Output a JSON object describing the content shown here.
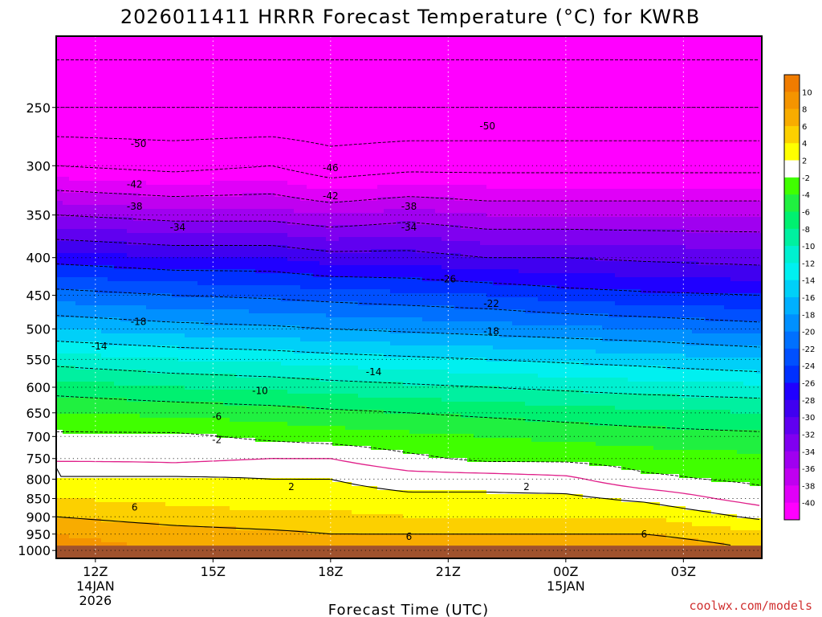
{
  "chart_data": {
    "type": "heatmap",
    "title": "2026011411 HRRR Forecast Temperature (°C) for KWRB",
    "xlabel": "Forecast Time (UTC)",
    "ylabel": "",
    "credit": "coolwx.com/models",
    "x_ticks": [
      {
        "hour": 12,
        "label": "12Z",
        "sub": [
          "14JAN",
          "2026"
        ]
      },
      {
        "hour": 15,
        "label": "15Z",
        "sub": []
      },
      {
        "hour": 18,
        "label": "18Z",
        "sub": []
      },
      {
        "hour": 21,
        "label": "21Z",
        "sub": []
      },
      {
        "hour": 24,
        "label": "00Z",
        "sub": [
          "15JAN"
        ]
      },
      {
        "hour": 27,
        "label": "03Z",
        "sub": []
      }
    ],
    "xlim": [
      11,
      29
    ],
    "y_ticks": [
      250,
      300,
      350,
      400,
      450,
      500,
      550,
      600,
      650,
      700,
      750,
      800,
      850,
      900,
      950,
      1000
    ],
    "ylim_hPa": [
      200,
      1025
    ],
    "y_scale": "log, inverted (pressure)",
    "surface_pressure_hPa": 985,
    "colorbar": {
      "ticks": [
        "10",
        "8",
        "6",
        "4",
        "2",
        "-2",
        "-4",
        "-6",
        "-8",
        "-10",
        "-12",
        "-14",
        "-16",
        "-18",
        "-20",
        "-22",
        "-24",
        "-26",
        "-28",
        "-30",
        "-32",
        "-34",
        "-36",
        "-38",
        "-40"
      ],
      "bins": [
        {
          "min": 10,
          "max": 12,
          "color": "#f07c00"
        },
        {
          "min": 8,
          "max": 10,
          "color": "#f49400"
        },
        {
          "min": 6,
          "max": 8,
          "color": "#f8ac00"
        },
        {
          "min": 4,
          "max": 6,
          "color": "#fcd000"
        },
        {
          "min": 2,
          "max": 4,
          "color": "#ffff00"
        },
        {
          "min": -2,
          "max": 2,
          "color": "#ffffff"
        },
        {
          "min": -4,
          "max": -2,
          "color": "#40ff00"
        },
        {
          "min": -6,
          "max": -4,
          "color": "#20f040"
        },
        {
          "min": -8,
          "max": -6,
          "color": "#00f070"
        },
        {
          "min": -10,
          "max": -8,
          "color": "#00f0a0"
        },
        {
          "min": -12,
          "max": -10,
          "color": "#00f0d0"
        },
        {
          "min": -14,
          "max": -12,
          "color": "#00f0f0"
        },
        {
          "min": -16,
          "max": -14,
          "color": "#00d0f8"
        },
        {
          "min": -18,
          "max": -16,
          "color": "#00b0ff"
        },
        {
          "min": -20,
          "max": -18,
          "color": "#0090ff"
        },
        {
          "min": -22,
          "max": -20,
          "color": "#0070ff"
        },
        {
          "min": -24,
          "max": -22,
          "color": "#0050ff"
        },
        {
          "min": -26,
          "max": -24,
          "color": "#0030ff"
        },
        {
          "min": -28,
          "max": -26,
          "color": "#2000ff"
        },
        {
          "min": -30,
          "max": -28,
          "color": "#4000f0"
        },
        {
          "min": -32,
          "max": -30,
          "color": "#6000f0"
        },
        {
          "min": -34,
          "max": -32,
          "color": "#8000f0"
        },
        {
          "min": -36,
          "max": -34,
          "color": "#a000f0"
        },
        {
          "min": -38,
          "max": -36,
          "color": "#c000f0"
        },
        {
          "min": -40,
          "max": -38,
          "color": "#e000f8"
        },
        {
          "min": -60,
          "max": -40,
          "color": "#ff00ff"
        }
      ]
    },
    "profile_times": [
      11,
      14,
      16.5,
      18,
      20,
      22,
      24,
      26,
      29
    ],
    "profiles": [
      [
        [
          1000,
          9
        ],
        [
          950,
          8
        ],
        [
          900,
          6
        ],
        [
          850,
          4
        ],
        [
          800,
          2
        ],
        [
          770,
          2
        ],
        [
          750,
          -1
        ],
        [
          700,
          -1.5
        ],
        [
          650,
          -4
        ],
        [
          600,
          -7
        ],
        [
          550,
          -11
        ],
        [
          500,
          -16
        ],
        [
          450,
          -21
        ],
        [
          400,
          -27
        ],
        [
          350,
          -34
        ],
        [
          300,
          -42
        ],
        [
          250,
          -50
        ],
        [
          200,
          -56
        ]
      ],
      [
        [
          1000,
          8
        ],
        [
          950,
          7
        ],
        [
          900,
          5
        ],
        [
          850,
          3.5
        ],
        [
          800,
          2.5
        ],
        [
          780,
          1
        ],
        [
          750,
          -0.5
        ],
        [
          700,
          -1.5
        ],
        [
          650,
          -4.5
        ],
        [
          600,
          -8
        ],
        [
          550,
          -12
        ],
        [
          500,
          -17
        ],
        [
          450,
          -22
        ],
        [
          400,
          -28
        ],
        [
          350,
          -35
        ],
        [
          300,
          -43
        ],
        [
          250,
          -50
        ],
        [
          200,
          -56
        ]
      ],
      [
        [
          1000,
          8
        ],
        [
          950,
          6.5
        ],
        [
          900,
          4.5
        ],
        [
          850,
          3
        ],
        [
          800,
          2
        ],
        [
          770,
          1
        ],
        [
          750,
          0
        ],
        [
          700,
          -2.5
        ],
        [
          650,
          -5
        ],
        [
          600,
          -8.5
        ],
        [
          550,
          -12.5
        ],
        [
          500,
          -17.5
        ],
        [
          450,
          -22.5
        ],
        [
          400,
          -28
        ],
        [
          350,
          -35
        ],
        [
          300,
          -42
        ],
        [
          250,
          -50
        ],
        [
          200,
          -56
        ]
      ],
      [
        [
          1000,
          8
        ],
        [
          950,
          6
        ],
        [
          900,
          4.5
        ],
        [
          850,
          3
        ],
        [
          800,
          2
        ],
        [
          750,
          0
        ],
        [
          700,
          -3
        ],
        [
          650,
          -5.5
        ],
        [
          600,
          -9
        ],
        [
          550,
          -13
        ],
        [
          500,
          -18
        ],
        [
          450,
          -23
        ],
        [
          400,
          -29
        ],
        [
          350,
          -36
        ],
        [
          300,
          -44
        ],
        [
          250,
          -50
        ],
        [
          200,
          -56
        ]
      ],
      [
        [
          1000,
          7.5
        ],
        [
          950,
          6
        ],
        [
          900,
          4
        ],
        [
          850,
          2.5
        ],
        [
          800,
          1
        ],
        [
          750,
          -1.5
        ],
        [
          700,
          -3.5
        ],
        [
          650,
          -6
        ],
        [
          600,
          -9.5
        ],
        [
          550,
          -13.5
        ],
        [
          500,
          -18.5
        ],
        [
          450,
          -23.5
        ],
        [
          400,
          -29
        ],
        [
          350,
          -35
        ],
        [
          300,
          -43
        ],
        [
          250,
          -50
        ],
        [
          200,
          -56
        ]
      ],
      [
        [
          1000,
          7.5
        ],
        [
          950,
          6
        ],
        [
          900,
          4
        ],
        [
          850,
          2.5
        ],
        [
          800,
          1
        ],
        [
          750,
          -2.5
        ],
        [
          700,
          -4
        ],
        [
          650,
          -6.5
        ],
        [
          600,
          -10
        ],
        [
          550,
          -14
        ],
        [
          500,
          -19
        ],
        [
          450,
          -24
        ],
        [
          400,
          -30
        ],
        [
          350,
          -36
        ],
        [
          300,
          -43
        ],
        [
          250,
          -50
        ],
        [
          200,
          -56
        ]
      ],
      [
        [
          1000,
          8
        ],
        [
          950,
          6
        ],
        [
          900,
          4
        ],
        [
          850,
          2.5
        ],
        [
          800,
          0.5
        ],
        [
          750,
          -2.5
        ],
        [
          700,
          -4.5
        ],
        [
          650,
          -7
        ],
        [
          600,
          -10.5
        ],
        [
          550,
          -14.5
        ],
        [
          500,
          -19.5
        ],
        [
          450,
          -25
        ],
        [
          400,
          -30
        ],
        [
          350,
          -36
        ],
        [
          300,
          -43
        ],
        [
          250,
          -50
        ],
        [
          200,
          -56
        ]
      ],
      [
        [
          1000,
          8
        ],
        [
          950,
          6
        ],
        [
          900,
          4
        ],
        [
          850,
          1.5
        ],
        [
          800,
          -1.5
        ],
        [
          750,
          -3
        ],
        [
          700,
          -5
        ],
        [
          650,
          -7.5
        ],
        [
          600,
          -11
        ],
        [
          550,
          -15
        ],
        [
          500,
          -20
        ],
        [
          450,
          -25.5
        ],
        [
          400,
          -30.5
        ],
        [
          350,
          -36
        ],
        [
          300,
          -43
        ],
        [
          250,
          -50
        ],
        [
          200,
          -56
        ]
      ],
      [
        [
          1000,
          6
        ],
        [
          950,
          4.5
        ],
        [
          900,
          1.5
        ],
        [
          850,
          -1
        ],
        [
          800,
          -2.5
        ],
        [
          750,
          -3.5
        ],
        [
          700,
          -5.5
        ],
        [
          650,
          -8
        ],
        [
          600,
          -11.5
        ],
        [
          550,
          -16
        ],
        [
          500,
          -21
        ],
        [
          450,
          -26
        ],
        [
          400,
          -31
        ],
        [
          350,
          -36
        ],
        [
          300,
          -43
        ],
        [
          250,
          -50
        ],
        [
          200,
          -56
        ]
      ]
    ],
    "contour_labels": [
      {
        "text": "-50",
        "time": 13.1,
        "p": 280
      },
      {
        "text": "-50",
        "time": 22.0,
        "p": 265
      },
      {
        "text": "-46",
        "time": 18.0,
        "p": 302
      },
      {
        "text": "-42",
        "time": 13.0,
        "p": 318
      },
      {
        "text": "-42",
        "time": 18.0,
        "p": 330
      },
      {
        "text": "-38",
        "time": 13.0,
        "p": 341
      },
      {
        "text": "-38",
        "time": 20.0,
        "p": 341
      },
      {
        "text": "-34",
        "time": 14.1,
        "p": 364
      },
      {
        "text": "-34",
        "time": 20.0,
        "p": 364
      },
      {
        "text": "-26",
        "time": 21.0,
        "p": 428
      },
      {
        "text": "-22",
        "time": 22.1,
        "p": 462
      },
      {
        "text": "-18",
        "time": 13.1,
        "p": 489
      },
      {
        "text": "-18",
        "time": 22.1,
        "p": 504
      },
      {
        "text": "-14",
        "time": 12.1,
        "p": 528
      },
      {
        "text": "-14",
        "time": 19.1,
        "p": 572
      },
      {
        "text": "-10",
        "time": 16.2,
        "p": 607
      },
      {
        "text": "-6",
        "time": 15.1,
        "p": 658
      },
      {
        "text": "-2",
        "time": 15.1,
        "p": 707
      },
      {
        "text": "2",
        "time": 17.0,
        "p": 820
      },
      {
        "text": "2",
        "time": 23.0,
        "p": 819
      },
      {
        "text": "6",
        "time": 13.0,
        "p": 874
      },
      {
        "text": "6",
        "time": 20.0,
        "p": 958
      },
      {
        "text": "6",
        "time": 26.0,
        "p": 951
      }
    ]
  }
}
